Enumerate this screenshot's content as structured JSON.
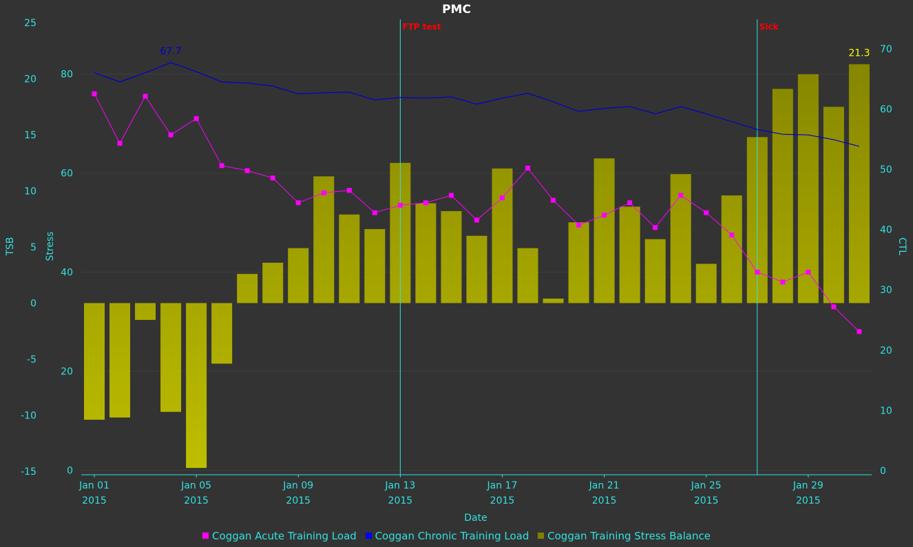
{
  "chart_data": {
    "type": "bar",
    "title": "PMC",
    "xlabel": "Date",
    "x_ticks": [
      {
        "day": 1,
        "line1": "Jan 01",
        "line2": "2015"
      },
      {
        "day": 5,
        "line1": "Jan 05",
        "line2": "2015"
      },
      {
        "day": 9,
        "line1": "Jan 09",
        "line2": "2015"
      },
      {
        "day": 13,
        "line1": "Jan 13",
        "line2": "2015"
      },
      {
        "day": 17,
        "line1": "Jan 17",
        "line2": "2015"
      },
      {
        "day": 21,
        "line1": "Jan 21",
        "line2": "2015"
      },
      {
        "day": 25,
        "line1": "Jan 25",
        "line2": "2015"
      },
      {
        "day": 29,
        "line1": "Jan 29",
        "line2": "2015"
      }
    ],
    "axes": {
      "tsb": {
        "label": "TSB",
        "range": [
          -15,
          25
        ],
        "ticks": [
          25,
          20,
          15,
          10,
          5,
          0,
          -5,
          -10,
          -15
        ]
      },
      "stress": {
        "label": "Stress",
        "range": [
          0,
          90
        ],
        "ticks": [
          80,
          60,
          40,
          20,
          0
        ]
      },
      "ctl": {
        "label": "CTL",
        "range": [
          0,
          70
        ],
        "ticks": [
          70,
          60,
          50,
          40,
          30,
          20,
          10,
          0
        ]
      }
    },
    "days": [
      1,
      2,
      3,
      4,
      5,
      6,
      7,
      8,
      9,
      10,
      11,
      12,
      13,
      14,
      15,
      16,
      17,
      18,
      19,
      20,
      21,
      22,
      23,
      24,
      25,
      26,
      27,
      28,
      29,
      30,
      31
    ],
    "series": [
      {
        "name": "Coggan Acute Training Load",
        "axis": "stress",
        "color": "#ff00ff",
        "values": [
          76,
          66,
          75.5,
          67.7,
          71,
          61.5,
          60.5,
          59,
          54,
          56,
          56.5,
          52,
          53.5,
          54,
          55.5,
          50.5,
          55,
          61,
          54.5,
          49.5,
          51.5,
          54,
          49,
          55.5,
          52,
          47.5,
          40,
          38,
          40,
          33,
          28
        ]
      },
      {
        "name": "Coggan Chronic Training Load",
        "axis": "ctl",
        "color": "#0000cc",
        "values": [
          66,
          64.5,
          66,
          67.7,
          66.2,
          64.5,
          64.3,
          63.8,
          62.5,
          62.7,
          62.8,
          61.5,
          61.9,
          61.8,
          62,
          60.8,
          61.8,
          62.6,
          61.2,
          59.6,
          60.1,
          60.4,
          59.2,
          60.4,
          59.2,
          57.9,
          56.6,
          55.8,
          55.7,
          54.9,
          53.8
        ]
      },
      {
        "name": "Coggan Training Stress Balance",
        "axis": "tsb",
        "color": "#808000",
        "values": [
          -10.4,
          -10.2,
          -1.5,
          -9.7,
          -14.7,
          -5.4,
          2.6,
          3.6,
          4.9,
          11.3,
          7.9,
          6.6,
          12.5,
          8.9,
          8.2,
          6.0,
          12.0,
          4.9,
          0.4,
          7.2,
          12.9,
          8.6,
          5.7,
          11.5,
          3.5,
          9.6,
          14.8,
          19.1,
          20.4,
          17.5,
          21.3
        ]
      }
    ],
    "annotations": [
      {
        "type": "peak-label",
        "series": 1,
        "day": 4,
        "text": "67.7",
        "color": "#0000cc"
      },
      {
        "type": "peak-label",
        "series": 2,
        "day": 31,
        "text": "21.3",
        "color": "#ffff00"
      }
    ],
    "events": [
      {
        "day": 13,
        "label": "FTP test"
      },
      {
        "day": 27,
        "label": "Sick"
      }
    ],
    "grid": true,
    "legend_position": "bottom"
  },
  "colors": {
    "background": "#333333",
    "axis": "#33e0e0",
    "grid": "#3d3d3d",
    "event_line": "#33e0e0",
    "event_label": "#ff0000",
    "title": "#ffffff",
    "bar_top": "#bfbf00",
    "bar_bottom": "#808000"
  }
}
